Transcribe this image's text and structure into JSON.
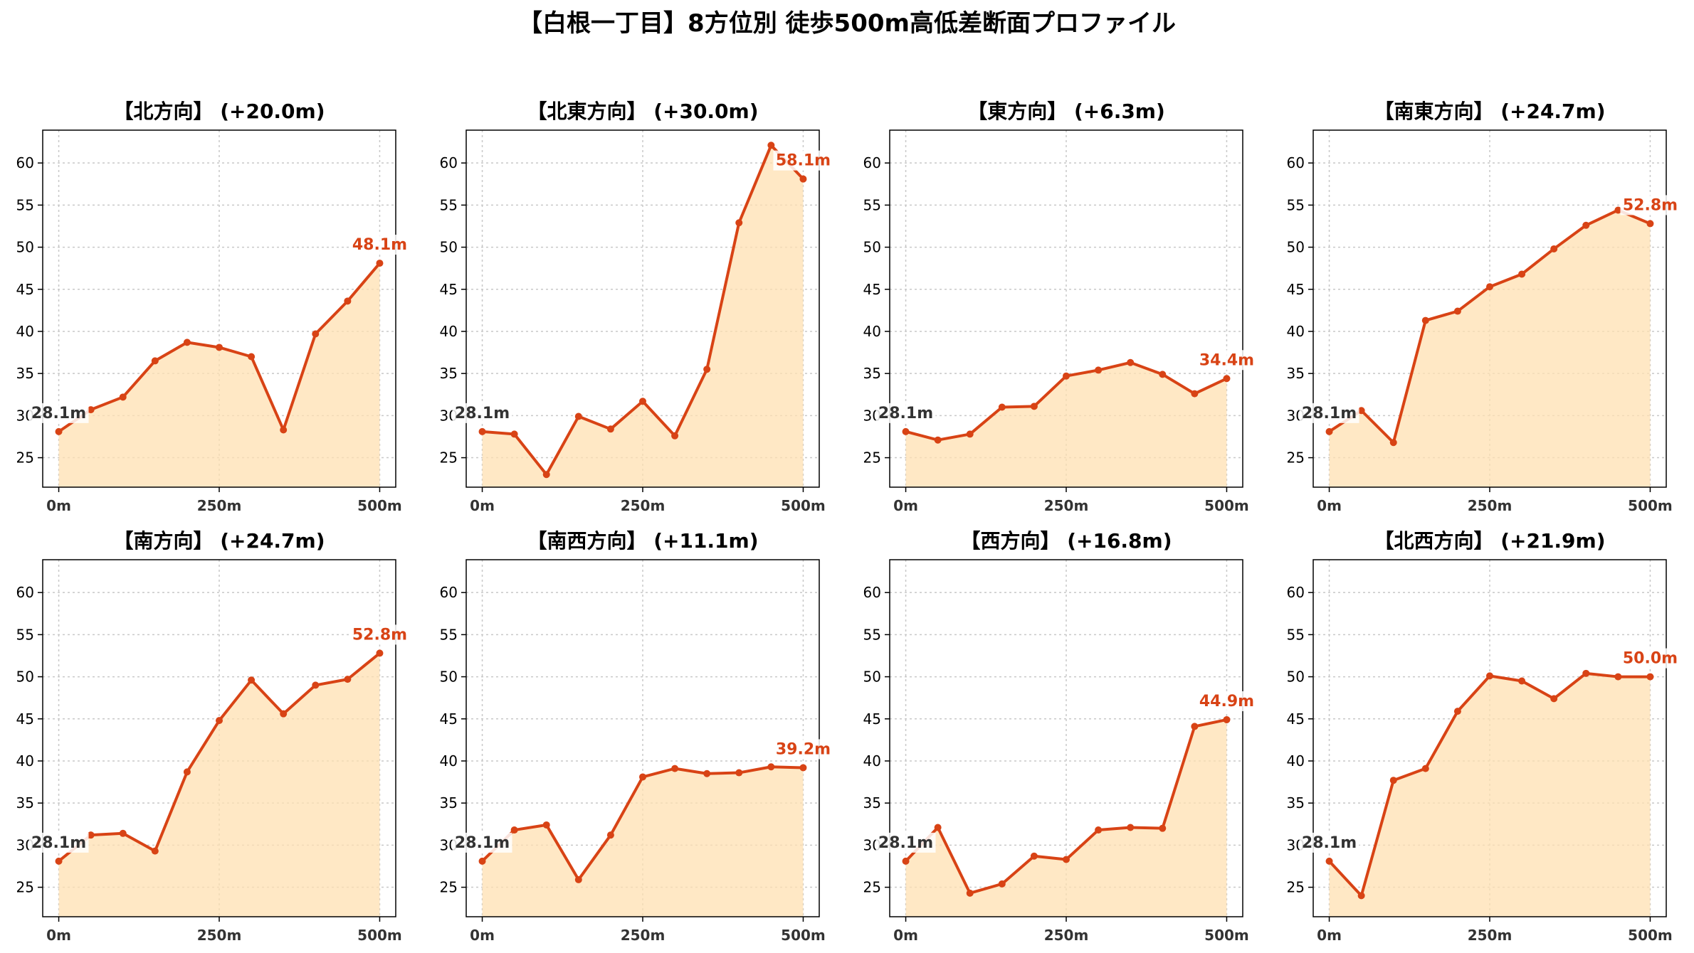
{
  "title": "【白根一丁目】8方位別 徒歩500m高低差断面プロファイル",
  "colors": {
    "line": "#d84315",
    "fill": "#ffe0b2",
    "start_label": "#333333",
    "end_label": "#d84315"
  },
  "chart_data": [
    {
      "type": "area",
      "title": "【北方向】 (+20.0m)",
      "x": [
        0,
        50,
        100,
        150,
        200,
        250,
        300,
        350,
        400,
        450,
        500
      ],
      "values": [
        28.1,
        30.7,
        32.2,
        36.5,
        38.7,
        38.1,
        37.0,
        28.3,
        39.7,
        43.6,
        48.1
      ],
      "start_label": "28.1m",
      "end_label": "48.1m",
      "xticks": [
        "0m",
        "250m",
        "500m"
      ],
      "yticks": [
        25,
        30,
        35,
        40,
        45,
        50,
        55,
        60
      ],
      "xlim": [
        -25,
        525
      ],
      "ylim": [
        21.5,
        63.9
      ],
      "grid": true
    },
    {
      "type": "area",
      "title": "【北東方向】 (+30.0m)",
      "x": [
        0,
        50,
        100,
        150,
        200,
        250,
        300,
        350,
        400,
        450,
        500
      ],
      "values": [
        28.1,
        27.8,
        23.0,
        29.9,
        28.4,
        31.7,
        27.6,
        35.5,
        52.9,
        62.1,
        58.1
      ],
      "start_label": "28.1m",
      "end_label": "58.1m",
      "xticks": [
        "0m",
        "250m",
        "500m"
      ],
      "yticks": [
        25,
        30,
        35,
        40,
        45,
        50,
        55,
        60
      ],
      "xlim": [
        -25,
        525
      ],
      "ylim": [
        21.5,
        63.9
      ],
      "grid": true
    },
    {
      "type": "area",
      "title": "【東方向】 (+6.3m)",
      "x": [
        0,
        50,
        100,
        150,
        200,
        250,
        300,
        350,
        400,
        450,
        500
      ],
      "values": [
        28.1,
        27.1,
        27.8,
        31.0,
        31.1,
        34.7,
        35.4,
        36.3,
        34.9,
        32.6,
        34.4
      ],
      "start_label": "28.1m",
      "end_label": "34.4m",
      "xticks": [
        "0m",
        "250m",
        "500m"
      ],
      "yticks": [
        25,
        30,
        35,
        40,
        45,
        50,
        55,
        60
      ],
      "xlim": [
        -25,
        525
      ],
      "ylim": [
        21.5,
        63.9
      ],
      "grid": true
    },
    {
      "type": "area",
      "title": "【南東方向】 (+24.7m)",
      "x": [
        0,
        50,
        100,
        150,
        200,
        250,
        300,
        350,
        400,
        450,
        500
      ],
      "values": [
        28.1,
        30.6,
        26.8,
        41.3,
        42.4,
        45.3,
        46.8,
        49.8,
        52.6,
        54.4,
        52.8
      ],
      "start_label": "28.1m",
      "end_label": "52.8m",
      "xticks": [
        "0m",
        "250m",
        "500m"
      ],
      "yticks": [
        25,
        30,
        35,
        40,
        45,
        50,
        55,
        60
      ],
      "xlim": [
        -25,
        525
      ],
      "ylim": [
        21.5,
        63.9
      ],
      "grid": true
    },
    {
      "type": "area",
      "title": "【南方向】 (+24.7m)",
      "x": [
        0,
        50,
        100,
        150,
        200,
        250,
        300,
        350,
        400,
        450,
        500
      ],
      "values": [
        28.1,
        31.2,
        31.4,
        29.3,
        38.7,
        44.8,
        49.6,
        45.6,
        49.0,
        49.7,
        52.8
      ],
      "start_label": "28.1m",
      "end_label": "52.8m",
      "xticks": [
        "0m",
        "250m",
        "500m"
      ],
      "yticks": [
        25,
        30,
        35,
        40,
        45,
        50,
        55,
        60
      ],
      "xlim": [
        -25,
        525
      ],
      "ylim": [
        21.5,
        63.9
      ],
      "grid": true
    },
    {
      "type": "area",
      "title": "【南西方向】 (+11.1m)",
      "x": [
        0,
        50,
        100,
        150,
        200,
        250,
        300,
        350,
        400,
        450,
        500
      ],
      "values": [
        28.1,
        31.8,
        32.4,
        25.9,
        31.2,
        38.1,
        39.1,
        38.5,
        38.6,
        39.3,
        39.2
      ],
      "start_label": "28.1m",
      "end_label": "39.2m",
      "xticks": [
        "0m",
        "250m",
        "500m"
      ],
      "yticks": [
        25,
        30,
        35,
        40,
        45,
        50,
        55,
        60
      ],
      "xlim": [
        -25,
        525
      ],
      "ylim": [
        21.5,
        63.9
      ],
      "grid": true
    },
    {
      "type": "area",
      "title": "【西方向】 (+16.8m)",
      "x": [
        0,
        50,
        100,
        150,
        200,
        250,
        300,
        350,
        400,
        450,
        500
      ],
      "values": [
        28.1,
        32.1,
        24.3,
        25.4,
        28.7,
        28.3,
        31.8,
        32.1,
        32.0,
        44.1,
        44.9
      ],
      "start_label": "28.1m",
      "end_label": "44.9m",
      "xticks": [
        "0m",
        "250m",
        "500m"
      ],
      "yticks": [
        25,
        30,
        35,
        40,
        45,
        50,
        55,
        60
      ],
      "xlim": [
        -25,
        525
      ],
      "ylim": [
        21.5,
        63.9
      ],
      "grid": true
    },
    {
      "type": "area",
      "title": "【北西方向】 (+21.9m)",
      "x": [
        0,
        50,
        100,
        150,
        200,
        250,
        300,
        350,
        400,
        450,
        500
      ],
      "values": [
        28.1,
        24.0,
        37.7,
        39.1,
        45.9,
        50.1,
        49.5,
        47.4,
        50.4,
        50.0,
        50.0
      ],
      "start_label": "28.1m",
      "end_label": "50.0m",
      "xticks": [
        "0m",
        "250m",
        "500m"
      ],
      "yticks": [
        25,
        30,
        35,
        40,
        45,
        50,
        55,
        60
      ],
      "xlim": [
        -25,
        525
      ],
      "ylim": [
        21.5,
        63.9
      ],
      "grid": true
    }
  ]
}
